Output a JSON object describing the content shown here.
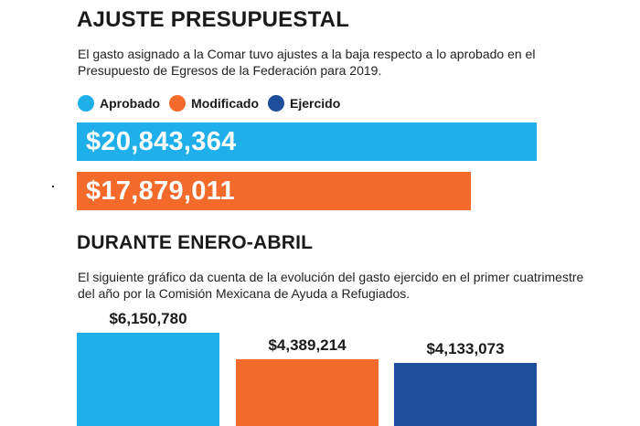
{
  "section1": {
    "title": "AJUSTE PRESUPUESTAL",
    "description": "El gasto asignado a la Comar tuvo ajustes a la baja respecto a lo aprobado en el Presupuesto de Egresos de la Federación para 2019."
  },
  "section2": {
    "title": "DURANTE ENERO-ABRIL",
    "description": "El siguiente gráfico da cuenta de la evolución del gasto ejercido en el primer cuatrimestre del año por la Comisión Mexicana de Ayuda a Refugiados."
  },
  "legend": [
    {
      "label": "Aprobado",
      "color": "#1fb0ec"
    },
    {
      "label": "Modificado",
      "color": "#f36a2b"
    },
    {
      "label": "Ejercido",
      "color": "#1f4f9c"
    }
  ],
  "chart_data": [
    {
      "type": "bar",
      "orientation": "horizontal",
      "categories": [
        "Aprobado",
        "Modificado"
      ],
      "values": [
        20843364,
        17879011
      ],
      "labels": [
        "$20,843,364",
        "$17,879,011"
      ],
      "colors": [
        "#1fb0ec",
        "#f36a2b"
      ]
    },
    {
      "type": "bar",
      "orientation": "vertical",
      "values": [
        6150780,
        4389214,
        4133073
      ],
      "labels": [
        "$6,150,780",
        "$4,389,214",
        "$4,133,073"
      ],
      "colors": [
        "#1fb0ec",
        "#f36a2b",
        "#1f4f9c"
      ]
    }
  ]
}
